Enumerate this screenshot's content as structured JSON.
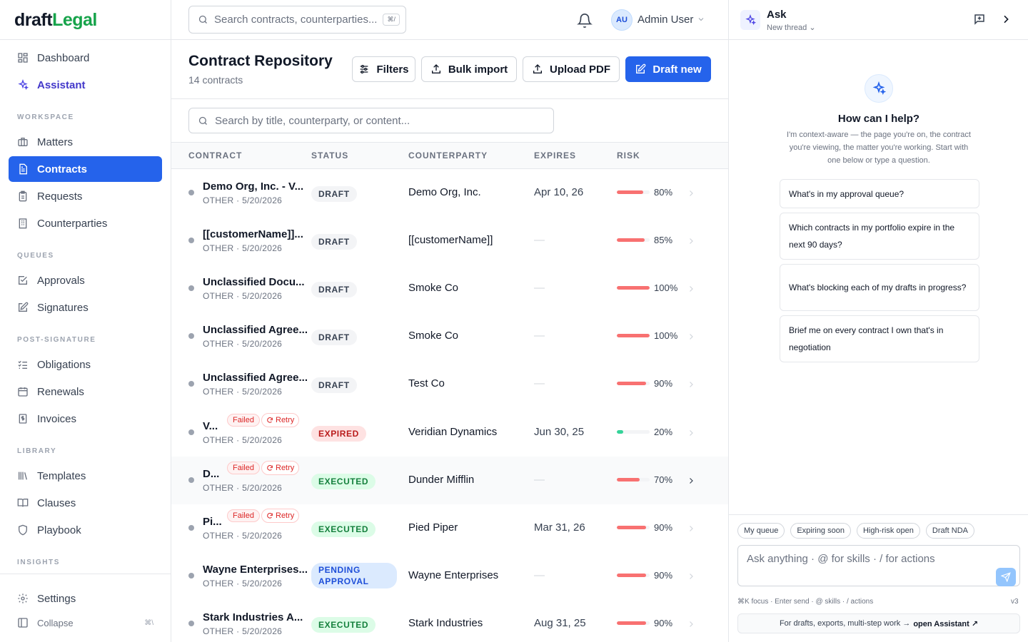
{
  "brand": {
    "part1": "draft",
    "part2": "Legal"
  },
  "sidebar": {
    "top": [
      {
        "label": "Dashboard",
        "icon": "dashboard-icon"
      },
      {
        "label": "Assistant",
        "icon": "sparkles-icon"
      }
    ],
    "sections": [
      {
        "title": "WORKSPACE",
        "items": [
          {
            "label": "Matters",
            "icon": "briefcase-icon"
          },
          {
            "label": "Contracts",
            "icon": "document-icon",
            "active": true
          },
          {
            "label": "Requests",
            "icon": "clipboard-icon"
          },
          {
            "label": "Counterparties",
            "icon": "building-icon"
          }
        ]
      },
      {
        "title": "QUEUES",
        "items": [
          {
            "label": "Approvals",
            "icon": "check-square-icon"
          },
          {
            "label": "Signatures",
            "icon": "pen-square-icon"
          }
        ]
      },
      {
        "title": "POST-SIGNATURE",
        "items": [
          {
            "label": "Obligations",
            "icon": "list-checks-icon"
          },
          {
            "label": "Renewals",
            "icon": "calendar-icon"
          },
          {
            "label": "Invoices",
            "icon": "dollar-receipt-icon"
          }
        ]
      },
      {
        "title": "LIBRARY",
        "items": [
          {
            "label": "Templates",
            "icon": "library-icon"
          },
          {
            "label": "Clauses",
            "icon": "book-open-icon"
          },
          {
            "label": "Playbook",
            "icon": "shield-icon"
          }
        ]
      },
      {
        "title": "INSIGHTS",
        "items": []
      }
    ],
    "settings_label": "Settings",
    "collapse_label": "Collapse",
    "collapse_kbd": "⌘\\"
  },
  "topbar": {
    "search_placeholder": "Search contracts, counterparties...",
    "search_kbd": "⌘/",
    "user_initials": "AU",
    "user_name": "Admin User"
  },
  "page": {
    "title": "Contract Repository",
    "subtitle": "14 contracts",
    "buttons": {
      "filters": "Filters",
      "bulk_import": "Bulk import",
      "upload_pdf": "Upload PDF",
      "draft_new": "Draft new"
    },
    "table_search_placeholder": "Search by title, counterparty, or content..."
  },
  "table": {
    "columns": [
      "CONTRACT",
      "STATUS",
      "COUNTERPARTY",
      "EXPIRES",
      "RISK"
    ],
    "rows": [
      {
        "title": "Demo Org, Inc. - V...",
        "meta": "OTHER · 5/20/2026",
        "status": "DRAFT",
        "status_kind": "draft",
        "counterparty": "Demo Org, Inc.",
        "expires": "Apr 10, 26",
        "risk": 80,
        "risk_label": "80%"
      },
      {
        "title": "[[customerName]]...",
        "meta": "OTHER · 5/20/2026",
        "status": "DRAFT",
        "status_kind": "draft",
        "counterparty": "[[customerName]]",
        "expires": "—",
        "risk": 85,
        "risk_label": "85%"
      },
      {
        "title": "Unclassified Docu...",
        "meta": "OTHER · 5/20/2026",
        "status": "DRAFT",
        "status_kind": "draft",
        "counterparty": "Smoke Co",
        "expires": "—",
        "risk": 100,
        "risk_label": "100%"
      },
      {
        "title": "Unclassified Agree...",
        "meta": "OTHER · 5/20/2026",
        "status": "DRAFT",
        "status_kind": "draft",
        "counterparty": "Smoke Co",
        "expires": "—",
        "risk": 100,
        "risk_label": "100%"
      },
      {
        "title": "Unclassified Agree...",
        "meta": "OTHER · 5/20/2026",
        "status": "DRAFT",
        "status_kind": "draft",
        "counterparty": "Test Co",
        "expires": "—",
        "risk": 90,
        "risk_label": "90%"
      },
      {
        "title": "V...",
        "failed": "Failed",
        "retry": "Retry",
        "meta": "OTHER · 5/20/2026",
        "status": "EXPIRED",
        "status_kind": "expired",
        "counterparty": "Veridian Dynamics",
        "expires": "Jun 30, 25",
        "risk": 20,
        "risk_label": "20%"
      },
      {
        "title": "D...",
        "failed": "Failed",
        "retry": "Retry",
        "meta": "OTHER · 5/20/2026",
        "status": "EXECUTED",
        "status_kind": "executed",
        "counterparty": "Dunder Mifflin",
        "expires": "—",
        "risk": 70,
        "risk_label": "70%",
        "hover": true
      },
      {
        "title": "Pi...",
        "failed": "Failed",
        "retry": "Retry",
        "meta": "OTHER · 5/20/2026",
        "status": "EXECUTED",
        "status_kind": "executed",
        "counterparty": "Pied Piper",
        "expires": "Mar 31, 26",
        "risk": 90,
        "risk_label": "90%"
      },
      {
        "title": "Wayne Enterprises...",
        "meta": "OTHER · 5/20/2026",
        "status": "PENDING APPROVAL",
        "status_kind": "pending",
        "counterparty": "Wayne Enterprises",
        "expires": "—",
        "risk": 90,
        "risk_label": "90%"
      },
      {
        "title": "Stark Industries A...",
        "meta": "OTHER · 5/20/2026",
        "status": "EXECUTED",
        "status_kind": "executed",
        "counterparty": "Stark Industries",
        "expires": "Aug 31, 25",
        "risk": 90,
        "risk_label": "90%"
      }
    ]
  },
  "colors": {
    "risk_high": "#f87171",
    "risk_low": "#34d399",
    "primary": "#2563eb"
  },
  "ask": {
    "title": "Ask",
    "thread": "New thread",
    "heading": "How can I help?",
    "description": "I'm context-aware — the page you're on, the contract you're viewing, the matter you're working. Start with one below or type a question.",
    "suggestions": [
      "What's in my approval queue?",
      "Which contracts in my portfolio expire in the next 90 days?",
      "What's blocking each of my drafts in progress?",
      "Brief me on every contract I own that's in negotiation"
    ],
    "chips": [
      "My queue",
      "Expiring soon",
      "High-risk open",
      "Draft NDA"
    ],
    "input_placeholder": "Ask anything · @ for skills · / for actions",
    "hints": "⌘K focus · Enter send · @ skills · / actions",
    "version": "v3",
    "open_assistant_prefix": "For drafts, exports, multi-step work →",
    "open_assistant_link": "open Assistant ↗"
  }
}
